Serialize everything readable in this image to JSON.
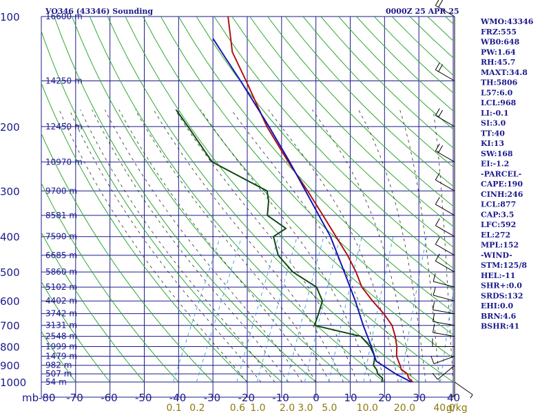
{
  "header": {
    "station": "VO346 (43346) Sounding",
    "time": "0000Z 25 APR 25"
  },
  "indices": [
    "WMO:43346",
    "FRZ:555",
    "WB0:648",
    "PW:1.64",
    "RH:45.7",
    "MAXT:34.8",
    "TH:5806",
    "L57:6.0",
    "LCL:968",
    "LI:-0.1",
    "SI:3.0",
    "TT:40",
    "KI:13",
    "SW:168",
    "EI:-1.2",
    "-PARCEL-",
    "CAPE:190",
    "CINH:246",
    "LCL:877",
    "CAP:3.5",
    "LFC:592",
    "EL:272",
    "MPL:152",
    "-WIND-",
    "STM:125/8",
    "HEL:-11",
    "SHR+:0.0",
    "SRDS:132",
    "EHI:0.0",
    "BRN:4.6",
    "BSHR:41"
  ],
  "colors": {
    "frame": "#1a1a8c",
    "dry_adiabat": "#2ea82e",
    "moist_adiabat": "#2b2b2b",
    "mixing_ratio": "#3a9ad6",
    "temperature": "#b01010",
    "dewpoint": "#0e4a0e",
    "parcel": "#1414b4",
    "mixing_label": "#8c7a10"
  },
  "chart_data": {
    "type": "line",
    "title": "VO346 (43346) Sounding",
    "ylabel": "mb",
    "yscale": "log",
    "ylim": [
      1000,
      100
    ],
    "xlim": [
      -80,
      40
    ],
    "pressure_ticks": [
      "100",
      "200",
      "300",
      "400",
      "500",
      "600",
      "700",
      "800",
      "900",
      "1000"
    ],
    "temp_ticks": [
      "-80",
      "-70",
      "-60",
      "-50",
      "-40",
      "-30",
      "-20",
      "-10",
      "0",
      "10",
      "20",
      "30",
      "40"
    ],
    "height_labels": [
      {
        "p": 100,
        "label": "16600 m"
      },
      {
        "p": 150,
        "label": "14250 m"
      },
      {
        "p": 200,
        "label": "12450 m"
      },
      {
        "p": 250,
        "label": "10970 m"
      },
      {
        "p": 300,
        "label": "9700 m"
      },
      {
        "p": 350,
        "label": "8581 m"
      },
      {
        "p": 400,
        "label": "7590 m"
      },
      {
        "p": 450,
        "label": "6685 m"
      },
      {
        "p": 500,
        "label": "5860 m"
      },
      {
        "p": 550,
        "label": "5102 m"
      },
      {
        "p": 600,
        "label": "4402 m"
      },
      {
        "p": 650,
        "label": "3742 m"
      },
      {
        "p": 700,
        "label": "3131 m"
      },
      {
        "p": 750,
        "label": "2548 m"
      },
      {
        "p": 800,
        "label": "1999 m"
      },
      {
        "p": 850,
        "label": "1479 m"
      },
      {
        "p": 900,
        "label": "982 m"
      },
      {
        "p": 950,
        "label": "507 m"
      },
      {
        "p": 1000,
        "label": "54 m"
      }
    ],
    "mixing_ratio_labels": [
      "0.1",
      "0.2",
      "0.6",
      "1.0",
      "2.0",
      "3.0",
      "5.0",
      "10.0",
      "20.0",
      "40.0"
    ],
    "mixing_ratio_unit": "g/kg",
    "series": [
      {
        "name": "",
        "kind": "temperature",
        "points": [
          [
            1000,
            28.2
          ],
          [
            975,
            26.4
          ],
          [
            950,
            25.4
          ],
          [
            925,
            23.0
          ],
          [
            900,
            22.0
          ],
          [
            875,
            20.8
          ],
          [
            850,
            19.6
          ],
          [
            800,
            18.2
          ],
          [
            750,
            16.2
          ],
          [
            700,
            13.6
          ],
          [
            650,
            9.4
          ],
          [
            600,
            4.2
          ],
          [
            550,
            -1.0
          ],
          [
            500,
            -5.0
          ],
          [
            450,
            -10.0
          ],
          [
            400,
            -16.2
          ],
          [
            350,
            -23.2
          ],
          [
            300,
            -31.4
          ],
          [
            250,
            -41.4
          ],
          [
            200,
            -53.0
          ],
          [
            150,
            -66.0
          ],
          [
            125,
            -74.4
          ],
          [
            100,
            -81.0
          ]
        ]
      },
      {
        "name": "",
        "kind": "dewpoint",
        "points": [
          [
            1000,
            19.2
          ],
          [
            975,
            18.8
          ],
          [
            950,
            16.8
          ],
          [
            925,
            15.8
          ],
          [
            900,
            14.2
          ],
          [
            875,
            13.8
          ],
          [
            850,
            13.2
          ],
          [
            800,
            10.4
          ],
          [
            750,
            6.2
          ],
          [
            700,
            -9.0
          ],
          [
            650,
            -9.6
          ],
          [
            600,
            -10.4
          ],
          [
            550,
            -14.2
          ],
          [
            500,
            -23.4
          ],
          [
            450,
            -30.2
          ],
          [
            400,
            -34.4
          ],
          [
            380,
            -32.0
          ],
          [
            350,
            -39.4
          ],
          [
            320,
            -41.2
          ],
          [
            300,
            -43.2
          ],
          [
            250,
            -63.6
          ],
          [
            200,
            -76.0
          ],
          [
            180,
            -82.0
          ]
        ]
      },
      {
        "name": "",
        "kind": "parcel",
        "points": [
          [
            1000,
            27.8
          ],
          [
            950,
            22.0
          ],
          [
            877,
            14.4
          ],
          [
            800,
            10.8
          ],
          [
            700,
            5.2
          ],
          [
            600,
            -0.8
          ],
          [
            500,
            -8.4
          ],
          [
            400,
            -17.8
          ],
          [
            300,
            -32.0
          ],
          [
            250,
            -41.0
          ],
          [
            200,
            -52.4
          ],
          [
            150,
            -67.6
          ],
          [
            130,
            -75.4
          ],
          [
            115,
            -82.0
          ]
        ]
      }
    ],
    "wind_barbs": [
      {
        "p": 1000,
        "dir": 125,
        "spd": 8
      },
      {
        "p": 950,
        "dir": 180,
        "spd": 5
      },
      {
        "p": 900,
        "dir": 230,
        "spd": 10
      },
      {
        "p": 850,
        "dir": 250,
        "spd": 10
      },
      {
        "p": 800,
        "dir": 270,
        "spd": 10
      },
      {
        "p": 750,
        "dir": 280,
        "spd": 10
      },
      {
        "p": 700,
        "dir": 280,
        "spd": 10
      },
      {
        "p": 650,
        "dir": 280,
        "spd": 10
      },
      {
        "p": 600,
        "dir": 285,
        "spd": 10
      },
      {
        "p": 550,
        "dir": 285,
        "spd": 10
      },
      {
        "p": 500,
        "dir": 300,
        "spd": 10
      },
      {
        "p": 450,
        "dir": 300,
        "spd": 10
      },
      {
        "p": 400,
        "dir": 300,
        "spd": 10
      },
      {
        "p": 350,
        "dir": 300,
        "spd": 10
      },
      {
        "p": 300,
        "dir": 300,
        "spd": 10
      },
      {
        "p": 250,
        "dir": 300,
        "spd": 20
      },
      {
        "p": 200,
        "dir": 300,
        "spd": 20
      },
      {
        "p": 150,
        "dir": 300,
        "spd": 20
      },
      {
        "p": 100,
        "dir": 300,
        "spd": 20
      }
    ]
  }
}
